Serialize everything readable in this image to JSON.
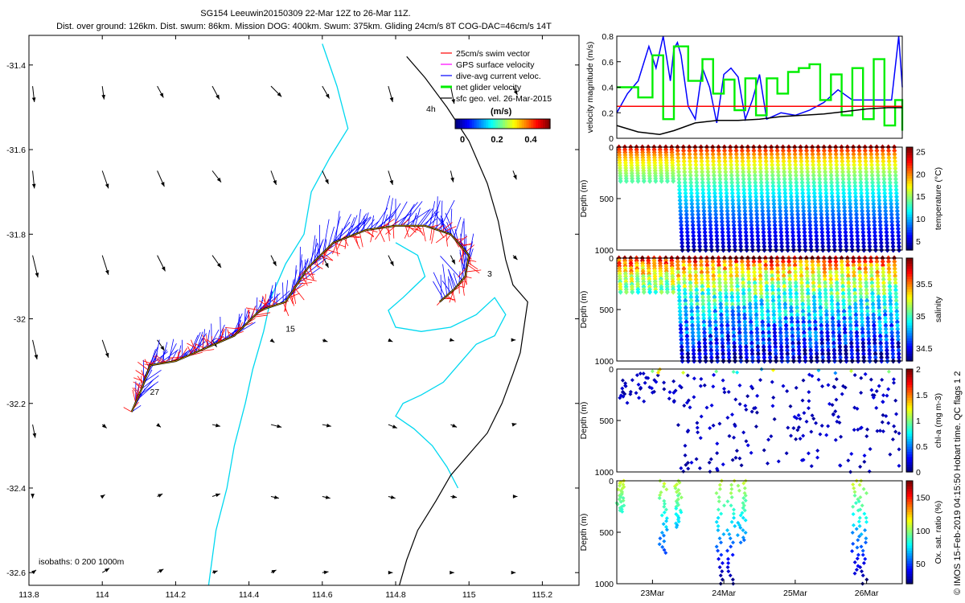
{
  "header": {
    "title": "SG154 Leeuwin20150309 22-Mar 12Z to 26-Mar 11Z.",
    "subtitle": "Dist. over ground: 126km. Dist. swum: 86km. Mission DOG: 400km. Swum: 375km. Gliding 24cm/s 8T COG-DAC=46cm/s 14T"
  },
  "side_note": "© IMOS 15-Feb-2019 04:15:50 Hobart time. QC flags 1  2",
  "colors": {
    "swim": "#ff0000",
    "gps": "#ff00ff",
    "dac": "#0000ff",
    "net": "#00ee00",
    "geo": "#000000",
    "isobath": "#00d8f0",
    "coast": "#000000"
  },
  "chart_data": [
    {
      "type": "map",
      "name": "track-map",
      "xlim": [
        113.8,
        115.3
      ],
      "ylim": [
        -32.63,
        -31.33
      ],
      "x_ticks": [
        113.8,
        114,
        114.2,
        114.4,
        114.6,
        114.8,
        115,
        115.2
      ],
      "x_tick_labels": [
        "113.8",
        "114",
        "114.2",
        "114.4",
        "114.6",
        "114.8",
        "115",
        "115.2"
      ],
      "y_ticks": [
        -31.4,
        -31.6,
        -31.8,
        -32,
        -32.2,
        -32.4,
        -32.6
      ],
      "y_tick_labels": [
        "-31.4",
        "-31.6",
        "-31.8",
        "-32",
        "-32.2",
        "-32.4",
        "-32.6"
      ],
      "legend": {
        "placement": "top-right",
        "entries": [
          "25cm/s swim vector",
          "GPS surface velocity",
          "dive-avg current veloc.",
          "net glider velocity",
          "sfc geo. vel. 26-Mar-2015"
        ],
        "interval_label": "4h",
        "colorbar_units": "(m/s)",
        "colorbar_ticks": [
          "0",
          "0.2",
          "0.4"
        ],
        "colorbar_range": [
          0,
          0.45
        ]
      },
      "isobath_label": "isobaths: 0   200  1000m",
      "track_labels": [
        {
          "text": "3",
          "lon": 115.05,
          "lat": -31.9
        },
        {
          "text": "15",
          "lon": 114.5,
          "lat": -32.03
        },
        {
          "text": "27",
          "lon": 114.13,
          "lat": -32.18
        }
      ],
      "track": [
        {
          "lon": 114.08,
          "lat": -32.22
        },
        {
          "lon": 114.11,
          "lat": -32.16
        },
        {
          "lon": 114.13,
          "lat": -32.11
        },
        {
          "lon": 114.2,
          "lat": -32.1
        },
        {
          "lon": 114.28,
          "lat": -32.07
        },
        {
          "lon": 114.36,
          "lat": -32.04
        },
        {
          "lon": 114.43,
          "lat": -31.98
        },
        {
          "lon": 114.5,
          "lat": -31.96
        },
        {
          "lon": 114.56,
          "lat": -31.88
        },
        {
          "lon": 114.63,
          "lat": -31.82
        },
        {
          "lon": 114.72,
          "lat": -31.79
        },
        {
          "lon": 114.8,
          "lat": -31.78
        },
        {
          "lon": 114.88,
          "lat": -31.78
        },
        {
          "lon": 114.95,
          "lat": -31.8
        },
        {
          "lon": 115.0,
          "lat": -31.85
        },
        {
          "lon": 114.99,
          "lat": -31.9
        },
        {
          "lon": 114.96,
          "lat": -31.93
        },
        {
          "lon": 114.92,
          "lat": -31.96
        }
      ],
      "coastline": [
        {
          "lon": 114.83,
          "lat": -31.38
        },
        {
          "lon": 114.88,
          "lat": -31.43
        },
        {
          "lon": 114.94,
          "lat": -31.5
        },
        {
          "lon": 115.0,
          "lat": -31.58
        },
        {
          "lon": 115.05,
          "lat": -31.68
        },
        {
          "lon": 115.08,
          "lat": -31.77
        },
        {
          "lon": 115.1,
          "lat": -31.86
        },
        {
          "lon": 115.12,
          "lat": -31.92
        },
        {
          "lon": 115.16,
          "lat": -31.96
        },
        {
          "lon": 115.15,
          "lat": -32.02
        },
        {
          "lon": 115.14,
          "lat": -32.08
        },
        {
          "lon": 115.12,
          "lat": -32.13
        },
        {
          "lon": 115.09,
          "lat": -32.2
        },
        {
          "lon": 115.05,
          "lat": -32.27
        },
        {
          "lon": 115.0,
          "lat": -32.32
        },
        {
          "lon": 114.95,
          "lat": -32.37
        },
        {
          "lon": 114.91,
          "lat": -32.43
        },
        {
          "lon": 114.86,
          "lat": -32.5
        },
        {
          "lon": 114.83,
          "lat": -32.57
        },
        {
          "lon": 114.81,
          "lat": -32.63
        }
      ],
      "isobath_200": [
        {
          "lon": 114.6,
          "lat": -31.35
        },
        {
          "lon": 114.64,
          "lat": -31.45
        },
        {
          "lon": 114.67,
          "lat": -31.55
        },
        {
          "lon": 114.62,
          "lat": -31.62
        },
        {
          "lon": 114.57,
          "lat": -31.7
        },
        {
          "lon": 114.55,
          "lat": -31.8
        },
        {
          "lon": 114.5,
          "lat": -31.87
        },
        {
          "lon": 114.46,
          "lat": -31.95
        },
        {
          "lon": 114.44,
          "lat": -32.03
        },
        {
          "lon": 114.41,
          "lat": -32.12
        },
        {
          "lon": 114.39,
          "lat": -32.2
        },
        {
          "lon": 114.36,
          "lat": -32.3
        },
        {
          "lon": 114.34,
          "lat": -32.4
        },
        {
          "lon": 114.31,
          "lat": -32.5
        },
        {
          "lon": 114.29,
          "lat": -32.63
        }
      ],
      "isobath_1000": [
        {
          "lon": 114.8,
          "lat": -31.82
        },
        {
          "lon": 114.86,
          "lat": -31.85
        },
        {
          "lon": 114.88,
          "lat": -31.9
        },
        {
          "lon": 114.82,
          "lat": -31.95
        },
        {
          "lon": 114.78,
          "lat": -31.98
        },
        {
          "lon": 114.8,
          "lat": -32.02
        },
        {
          "lon": 114.87,
          "lat": -32.03
        },
        {
          "lon": 114.95,
          "lat": -32.02
        },
        {
          "lon": 115.02,
          "lat": -31.99
        },
        {
          "lon": 115.07,
          "lat": -31.95
        },
        {
          "lon": 115.1,
          "lat": -31.99
        },
        {
          "lon": 115.07,
          "lat": -32.04
        },
        {
          "lon": 115.02,
          "lat": -32.06
        },
        {
          "lon": 114.98,
          "lat": -32.1
        },
        {
          "lon": 114.93,
          "lat": -32.15
        },
        {
          "lon": 114.87,
          "lat": -32.18
        },
        {
          "lon": 114.82,
          "lat": -32.2
        },
        {
          "lon": 114.8,
          "lat": -32.23
        },
        {
          "lon": 114.85,
          "lat": -32.26
        },
        {
          "lon": 114.9,
          "lat": -32.3
        },
        {
          "lon": 114.94,
          "lat": -32.35
        },
        {
          "lon": 114.97,
          "lat": -32.4
        }
      ],
      "geo_vectors": {
        "lons": [
          113.81,
          114,
          114.15,
          114.3,
          114.46,
          114.6,
          114.78,
          114.95,
          115.12
        ],
        "lats": [
          -31.45,
          -31.65,
          -31.85,
          -32.05,
          -32.25,
          -32.42,
          -32.6
        ],
        "rows": [
          [
            [
              0.02,
              -0.18
            ],
            [
              0.02,
              -0.15
            ],
            [
              0.07,
              -0.13
            ],
            [
              0.08,
              -0.15
            ],
            [
              0.12,
              -0.12
            ],
            [
              0.08,
              -0.14
            ],
            [
              0.05,
              -0.18
            ],
            [
              0.04,
              -0.2
            ],
            [
              0.05,
              -0.1
            ]
          ],
          [
            [
              0.02,
              -0.2
            ],
            [
              0.07,
              -0.2
            ],
            [
              0.08,
              -0.18
            ],
            [
              0.1,
              -0.13
            ],
            [
              0.06,
              -0.16
            ],
            [
              0.07,
              -0.15
            ],
            [
              0.05,
              -0.16
            ],
            [
              0.03,
              -0.13
            ],
            [
              0.04,
              -0.1
            ]
          ],
          [
            [
              0.06,
              -0.25
            ],
            [
              0.07,
              -0.22
            ],
            [
              0.09,
              -0.18
            ],
            [
              0.1,
              -0.14
            ],
            [
              0.06,
              -0.12
            ],
            [
              0.07,
              -0.14
            ],
            [
              0.06,
              -0.12
            ],
            [
              0.05,
              -0.1
            ],
            [
              0.05,
              -0.05
            ]
          ],
          [
            [
              0.05,
              -0.22
            ],
            [
              0.07,
              -0.2
            ],
            [
              0.08,
              -0.12
            ],
            [
              0.05,
              -0.08
            ],
            [
              0.04,
              -0.03
            ],
            [
              0.06,
              -0.02
            ],
            [
              0.05,
              -0.02
            ],
            [
              0.04,
              -0.01
            ],
            [
              0.03,
              0.0
            ]
          ],
          [
            [
              0.03,
              -0.15
            ],
            [
              0.05,
              -0.04
            ],
            [
              0.04,
              -0.03
            ],
            [
              0.09,
              -0.02
            ],
            [
              0.12,
              -0.03
            ],
            [
              0.1,
              -0.02
            ],
            [
              0.1,
              -0.04
            ],
            [
              0.07,
              -0.03
            ],
            [
              0.04,
              0.01
            ]
          ],
          [
            [
              0.0,
              -0.02
            ],
            [
              0.03,
              0.02
            ],
            [
              0.06,
              0.03
            ],
            [
              0.09,
              0.03
            ],
            [
              0.09,
              -0.02
            ],
            [
              0.09,
              -0.02
            ],
            [
              0.08,
              -0.02
            ],
            [
              0.07,
              -0.01
            ],
            [
              0.05,
              0.0
            ]
          ],
          [
            [
              0.04,
              0.03
            ],
            [
              0.08,
              0.05
            ],
            [
              0.07,
              0.04
            ],
            [
              0.06,
              0.02
            ],
            [
              0.06,
              0.03
            ],
            [
              0.07,
              0.01
            ],
            [
              0.05,
              0.0
            ],
            [
              0.04,
              0.0
            ],
            [
              0.03,
              0.0
            ]
          ]
        ]
      }
    },
    {
      "type": "line",
      "name": "velocity-panel",
      "ylabel": "velocity magnitude (m/s)",
      "x_range_days": [
        0,
        4
      ],
      "ylim": [
        0,
        0.8
      ],
      "y_ticks": [
        0,
        0.2,
        0.4,
        0.6,
        0.8
      ],
      "y_tick_labels": [
        "0",
        "0.2",
        "0.4",
        "0.6",
        "0.8"
      ],
      "series": [
        {
          "name": "dive-avg current veloc.",
          "color": "#0000ff",
          "step": false,
          "t": [
            0,
            0.15,
            0.3,
            0.45,
            0.55,
            0.65,
            0.75,
            0.8,
            0.85,
            0.9,
            1.0,
            1.1,
            1.2,
            1.3,
            1.4,
            1.5,
            1.6,
            1.7,
            1.8,
            1.9,
            2.0,
            2.1,
            2.3,
            2.5,
            2.7,
            2.9,
            3.1,
            3.3,
            3.5,
            3.7,
            3.85,
            3.95,
            4.0
          ],
          "v": [
            0.2,
            0.35,
            0.45,
            0.72,
            0.55,
            0.8,
            0.45,
            0.7,
            0.75,
            0.65,
            0.25,
            0.15,
            0.55,
            0.4,
            0.12,
            0.5,
            0.55,
            0.48,
            0.15,
            0.3,
            0.5,
            0.15,
            0.2,
            0.18,
            0.22,
            0.28,
            0.38,
            0.3,
            0.3,
            0.3,
            0.3,
            0.8,
            0.4
          ]
        },
        {
          "name": "net glider velocity",
          "color": "#00ee00",
          "step": true,
          "t": [
            0,
            0.3,
            0.5,
            0.65,
            0.8,
            1.0,
            1.2,
            1.35,
            1.5,
            1.65,
            1.8,
            1.95,
            2.1,
            2.25,
            2.4,
            2.55,
            2.7,
            2.85,
            3.0,
            3.15,
            3.3,
            3.45,
            3.6,
            3.75,
            3.9,
            4.0
          ],
          "v": [
            0.4,
            0.32,
            0.65,
            0.15,
            0.72,
            0.45,
            0.62,
            0.35,
            0.46,
            0.22,
            0.47,
            0.18,
            0.47,
            0.35,
            0.52,
            0.55,
            0.58,
            0.3,
            0.5,
            0.18,
            0.55,
            0.15,
            0.62,
            0.1,
            0.3,
            0.06
          ]
        },
        {
          "name": "25cm/s swim vector",
          "color": "#ff0000",
          "step": false,
          "t": [
            0,
            4.0
          ],
          "v": [
            0.25,
            0.25
          ]
        },
        {
          "name": "sfc geo. vel.",
          "color": "#000000",
          "step": false,
          "t": [
            0,
            0.3,
            0.6,
            0.8,
            1.1,
            1.4,
            1.7,
            2.0,
            2.3,
            2.6,
            2.9,
            3.2,
            3.5,
            3.8,
            4.0
          ],
          "v": [
            0.1,
            0.05,
            0.03,
            0.06,
            0.12,
            0.14,
            0.14,
            0.15,
            0.17,
            0.18,
            0.19,
            0.21,
            0.23,
            0.24,
            0.24
          ]
        }
      ]
    },
    {
      "type": "scatter",
      "name": "temperature-panel",
      "ylabel": "Depth (m)",
      "colorbar_label": "temperature (°C)",
      "colorbar_range": [
        3,
        26
      ],
      "colorbar_ticks": [
        "5",
        "10",
        "15",
        "20",
        "25"
      ],
      "y_tick_labels": [
        "0",
        "500",
        "1000"
      ],
      "ylim": [
        0,
        1000
      ],
      "surface_value": 25,
      "deep_value": 4,
      "shallow_days": 0.85
    },
    {
      "type": "scatter",
      "name": "salinity-panel",
      "ylabel": "Depth (m)",
      "colorbar_label": "salinity",
      "colorbar_range": [
        34.3,
        35.9
      ],
      "colorbar_ticks": [
        "34.5",
        "35",
        "35.5"
      ],
      "y_tick_labels": [
        "0",
        "500",
        "1000"
      ],
      "ylim": [
        0,
        1000
      ],
      "surface_value": 35.8,
      "deep_value": 34.4,
      "shallow_days": 0.85
    },
    {
      "type": "scatter",
      "name": "chla-panel",
      "ylabel": "Depth (m)",
      "colorbar_label": "chl-a (mg m-3)",
      "colorbar_range": [
        0,
        2
      ],
      "colorbar_ticks": [
        "0",
        "0.5",
        "1",
        "1.5",
        "2"
      ],
      "y_tick_labels": [
        "0",
        "500",
        "1000"
      ],
      "ylim": [
        0,
        1000
      ]
    },
    {
      "type": "scatter",
      "name": "oxygen-panel",
      "ylabel": "Depth (m)",
      "colorbar_label": "Ox. sat. ratio (%)",
      "colorbar_range": [
        20,
        175
      ],
      "colorbar_ticks": [
        "50",
        "100",
        "150"
      ],
      "y_tick_labels": [
        "0",
        "500",
        "1000"
      ],
      "ylim": [
        0,
        1000
      ],
      "casts": [
        {
          "t": 0.05,
          "depth": 300
        },
        {
          "t": 0.65,
          "depth": 700
        },
        {
          "t": 0.85,
          "depth": 450
        },
        {
          "t": 1.45,
          "depth": 1000
        },
        {
          "t": 1.6,
          "depth": 1000
        },
        {
          "t": 1.75,
          "depth": 600
        },
        {
          "t": 3.35,
          "depth": 900
        },
        {
          "t": 3.45,
          "depth": 1000
        }
      ]
    },
    {
      "type": "axis",
      "name": "time-axis",
      "x_tick_labels": [
        "23Mar",
        "24Mar",
        "25Mar",
        "26Mar"
      ],
      "x_ticks_days": [
        0.5,
        1.5,
        2.5,
        3.5
      ]
    }
  ]
}
